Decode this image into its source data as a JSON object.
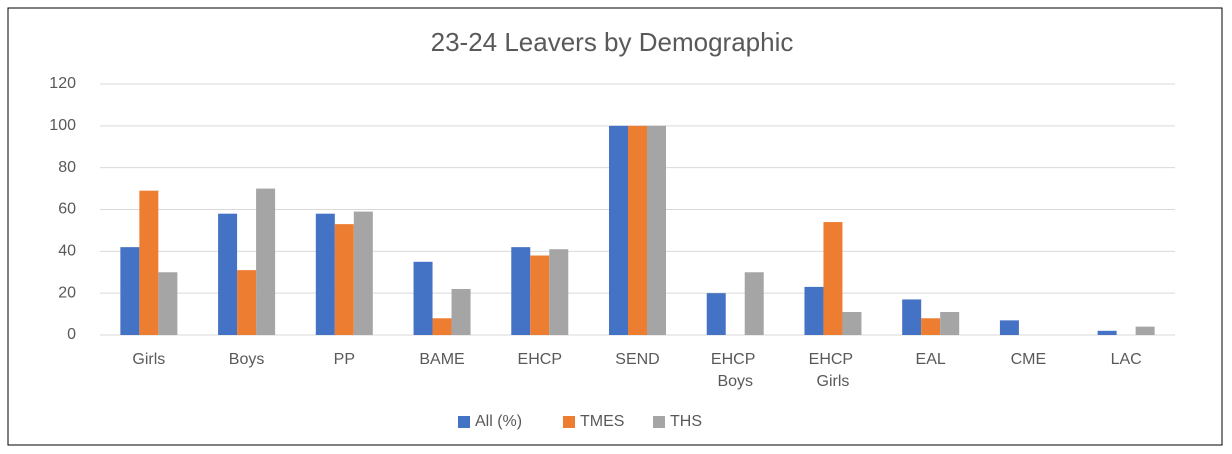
{
  "chart_data": {
    "type": "bar",
    "title": "23-24 Leavers by Demographic",
    "categories": [
      "Girls",
      "Boys",
      "PP",
      "BAME",
      "EHCP",
      "SEND",
      "EHCP Boys",
      "EHCP Girls",
      "EAL",
      "CME",
      "LAC"
    ],
    "series": [
      {
        "name": "All (%)",
        "color": "#4472c4",
        "values": [
          42,
          58,
          58,
          35,
          42,
          100,
          20,
          23,
          17,
          7,
          2
        ]
      },
      {
        "name": "TMES",
        "color": "#ed7d31",
        "values": [
          69,
          31,
          53,
          8,
          38,
          100,
          0,
          54,
          8,
          0,
          0
        ]
      },
      {
        "name": "THS",
        "color": "#a5a5a5",
        "values": [
          30,
          70,
          59,
          22,
          41,
          100,
          30,
          11,
          11,
          0,
          4
        ]
      }
    ],
    "ylim": [
      0,
      120
    ],
    "yticks": [
      0,
      20,
      40,
      60,
      80,
      100,
      120
    ],
    "grid": true,
    "legend": "bottom"
  }
}
